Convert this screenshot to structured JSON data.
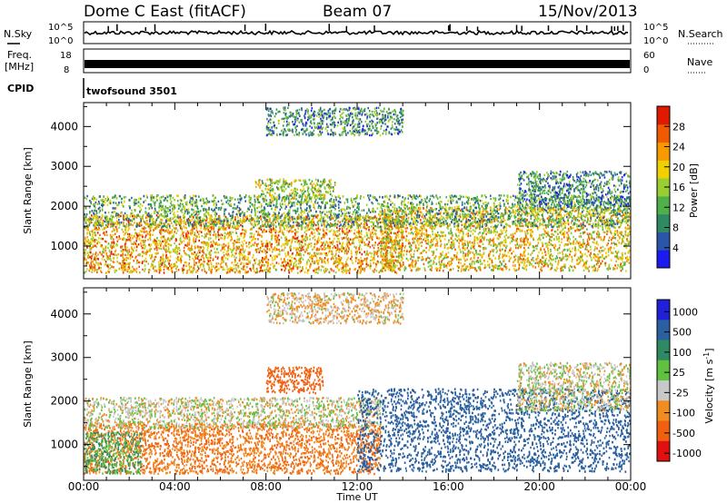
{
  "header": {
    "station": "Dome C East (fitACF)",
    "beam": "Beam 07",
    "date": "15/Nov/2013"
  },
  "strip_panels": {
    "nsky": {
      "label": "N.Sky",
      "ticks": [
        "10^5",
        "10^0"
      ]
    },
    "nsearch": {
      "label": "N.Search",
      "ticks": [
        "10^5",
        "10^0"
      ]
    },
    "freq": {
      "label_top": "Freq.",
      "label_bottom": "[MHz]",
      "ticks": [
        "18",
        "8"
      ]
    },
    "nave": {
      "label": "Nave",
      "ticks": [
        "60",
        "0"
      ]
    },
    "cpid": {
      "label": "CPID",
      "value": "twofsound 3501"
    }
  },
  "chart_data": [
    {
      "type": "heatmap",
      "name": "power",
      "xlabel": "",
      "ylabel": "Slant Range [km]",
      "xlim_hours": [
        0,
        24
      ],
      "ylim": [
        180,
        4600
      ],
      "y_ticks": [
        1000,
        2000,
        3000,
        4000
      ],
      "colorbar": {
        "label": "Power [dB]",
        "ticks": [
          "4",
          "8",
          "12",
          "16",
          "20",
          "24",
          "28"
        ],
        "tick_values": [
          4,
          8,
          12,
          16,
          20,
          24,
          28
        ],
        "range": [
          0,
          32
        ],
        "colors": [
          "#1b1bf0",
          "#2a55a8",
          "#2f8a64",
          "#4fb04a",
          "#9acd32",
          "#f0d000",
          "#f79a00",
          "#f05a00",
          "#e01a00"
        ]
      },
      "regions": [
        {
          "x": [
            0,
            14
          ],
          "y": [
            350,
            1800
          ],
          "value": 22
        },
        {
          "x": [
            13,
            24
          ],
          "y": [
            400,
            2000
          ],
          "value": 20
        },
        {
          "x": [
            0,
            24
          ],
          "y": [
            1500,
            2300
          ],
          "value": 12
        },
        {
          "x": [
            7.5,
            11
          ],
          "y": [
            2200,
            2700
          ],
          "value": 16
        },
        {
          "x": [
            8,
            14
          ],
          "y": [
            3800,
            4500
          ],
          "value": 10
        },
        {
          "x": [
            19,
            24
          ],
          "y": [
            2000,
            2900
          ],
          "value": 9
        }
      ]
    },
    {
      "type": "heatmap",
      "name": "velocity",
      "xlabel": "Time UT",
      "ylabel": "Slant Range [km]",
      "x_ticks": [
        "00:00",
        "04:00",
        "08:00",
        "12:00",
        "16:00",
        "20:00",
        "00:00"
      ],
      "xlim_hours": [
        0,
        24
      ],
      "ylim": [
        180,
        4600
      ],
      "y_ticks": [
        1000,
        2000,
        3000,
        4000
      ],
      "colorbar": {
        "label": "Velocity [m s-1]",
        "ticks": [
          "1000",
          "500",
          "100",
          "25",
          "-25",
          "-100",
          "-500",
          "-1000"
        ],
        "colors": [
          "#2020d8",
          "#2a60a0",
          "#2f8a64",
          "#60c040",
          "#c8c8c8",
          "#f08c20",
          "#f06010",
          "#e01010"
        ]
      },
      "regions": [
        {
          "x": [
            0,
            13
          ],
          "y": [
            350,
            1500
          ],
          "value": -100
        },
        {
          "x": [
            0,
            2.5
          ],
          "y": [
            350,
            1300
          ],
          "value": 100
        },
        {
          "x": [
            0,
            13
          ],
          "y": [
            1400,
            2100
          ],
          "value": 0
        },
        {
          "x": [
            12,
            24
          ],
          "y": [
            400,
            2300
          ],
          "value": 400
        },
        {
          "x": [
            19,
            24
          ],
          "y": [
            1800,
            2900
          ],
          "value": 0
        },
        {
          "x": [
            8,
            10.5
          ],
          "y": [
            2200,
            2800
          ],
          "value": -300
        },
        {
          "x": [
            8,
            14
          ],
          "y": [
            3800,
            4500
          ],
          "value": -25
        }
      ]
    }
  ]
}
